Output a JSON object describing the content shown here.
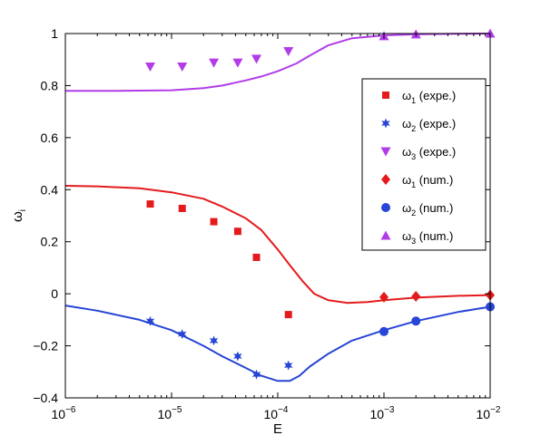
{
  "chart_data": {
    "type": "scatter",
    "xscale": "log",
    "xlim": [
      1e-06,
      0.01
    ],
    "ylim": [
      -0.4,
      1
    ],
    "xlabel": "E",
    "ylabel": "ωi",
    "ylabel_main": "ω",
    "ylabel_sub": "i",
    "grid": false,
    "legend_position": "right",
    "x_ticks": [
      {
        "value": 1e-06,
        "base": "10",
        "exp": "−6"
      },
      {
        "value": 1e-05,
        "base": "10",
        "exp": "−5"
      },
      {
        "value": 0.0001,
        "base": "10",
        "exp": "−4"
      },
      {
        "value": 0.001,
        "base": "10",
        "exp": "−3"
      },
      {
        "value": 0.01,
        "base": "10",
        "exp": "−2"
      }
    ],
    "y_ticks": [
      {
        "value": -0.4,
        "label": "−0.4"
      },
      {
        "value": -0.2,
        "label": "−0.2"
      },
      {
        "value": 0,
        "label": "0"
      },
      {
        "value": 0.2,
        "label": "0.2"
      },
      {
        "value": 0.4,
        "label": "0.4"
      },
      {
        "value": 0.6,
        "label": "0.6"
      },
      {
        "value": 0.8,
        "label": "0.8"
      },
      {
        "value": 1,
        "label": "1"
      }
    ],
    "colors": {
      "red": "#e41a1c",
      "blue": "#2745d6",
      "purple": "#b23ce8"
    },
    "lines": [
      {
        "name": "ω1 curve",
        "color": "#e41a1c",
        "x": [
          1e-06,
          2e-06,
          5e-06,
          1e-05,
          2e-05,
          3e-05,
          5e-05,
          7e-05,
          0.0001,
          0.00013,
          0.00017,
          0.00022,
          0.0003,
          0.00045,
          0.0007,
          0.001,
          0.002,
          0.005,
          0.01
        ],
        "y": [
          0.415,
          0.413,
          0.405,
          0.39,
          0.365,
          0.335,
          0.29,
          0.245,
          0.17,
          0.11,
          0.05,
          0.0,
          -0.025,
          -0.035,
          -0.032,
          -0.025,
          -0.015,
          -0.008,
          -0.005
        ]
      },
      {
        "name": "ω2 curve",
        "color": "#2745d6",
        "x": [
          1e-06,
          2e-06,
          5e-06,
          1e-05,
          2e-05,
          3e-05,
          5e-05,
          7e-05,
          0.0001,
          0.00013,
          0.00016,
          0.0002,
          0.0003,
          0.0005,
          0.001,
          0.002,
          0.005,
          0.01
        ],
        "y": [
          -0.045,
          -0.065,
          -0.1,
          -0.14,
          -0.2,
          -0.24,
          -0.285,
          -0.315,
          -0.335,
          -0.335,
          -0.315,
          -0.28,
          -0.23,
          -0.18,
          -0.14,
          -0.105,
          -0.07,
          -0.05
        ]
      },
      {
        "name": "ω3 curve",
        "color": "#b23ce8",
        "x": [
          1e-06,
          3e-06,
          1e-05,
          2e-05,
          3e-05,
          5e-05,
          7e-05,
          0.0001,
          0.00015,
          0.0002,
          0.0003,
          0.0005,
          0.001,
          0.002,
          0.005,
          0.01
        ],
        "y": [
          0.78,
          0.78,
          0.782,
          0.79,
          0.8,
          0.82,
          0.835,
          0.855,
          0.885,
          0.915,
          0.955,
          0.982,
          0.993,
          0.997,
          0.999,
          1.0
        ]
      }
    ],
    "series": [
      {
        "name": "ω1 (expe.)",
        "legend_main": "ω",
        "legend_sub": "1",
        "legend_rest": " (expe.)",
        "marker": "square",
        "color": "#e41a1c",
        "x": [
          6.3e-06,
          1.26e-05,
          2.5e-05,
          4.2e-05,
          6.3e-05,
          0.000126
        ],
        "y": [
          0.345,
          0.328,
          0.277,
          0.24,
          0.14,
          -0.08
        ]
      },
      {
        "name": "ω2 (expe.)",
        "legend_main": "ω",
        "legend_sub": "2",
        "legend_rest": " (expe.)",
        "marker": "star",
        "color": "#2745d6",
        "x": [
          6.3e-06,
          1.26e-05,
          2.5e-05,
          4.2e-05,
          6.3e-05,
          0.000126
        ],
        "y": [
          -0.105,
          -0.155,
          -0.18,
          -0.24,
          -0.31,
          -0.275
        ]
      },
      {
        "name": "ω3 (expe.)",
        "legend_main": "ω",
        "legend_sub": "3",
        "legend_rest": " (expe.)",
        "marker": "triangle-down",
        "color": "#b23ce8",
        "x": [
          6.3e-06,
          1.26e-05,
          2.5e-05,
          4.2e-05,
          6.3e-05,
          0.000126
        ],
        "y": [
          0.873,
          0.873,
          0.888,
          0.888,
          0.903,
          0.932
        ]
      },
      {
        "name": "ω1 (num.)",
        "legend_main": "ω",
        "legend_sub": "1",
        "legend_rest": " (num.)",
        "marker": "diamond",
        "color": "#e41a1c",
        "x": [
          0.001,
          0.002,
          0.01
        ],
        "y": [
          -0.013,
          -0.01,
          -0.005
        ]
      },
      {
        "name": "ω2 (num.)",
        "legend_main": "ω",
        "legend_sub": "2",
        "legend_rest": " (num.)",
        "marker": "circle",
        "color": "#2745d6",
        "x": [
          0.001,
          0.002,
          0.01
        ],
        "y": [
          -0.145,
          -0.105,
          -0.05
        ]
      },
      {
        "name": "ω3 (num.)",
        "legend_main": "ω",
        "legend_sub": "3",
        "legend_rest": " (num.)",
        "marker": "triangle-up",
        "color": "#b23ce8",
        "x": [
          0.001,
          0.002,
          0.01
        ],
        "y": [
          0.99,
          0.997,
          1.0
        ]
      }
    ]
  }
}
